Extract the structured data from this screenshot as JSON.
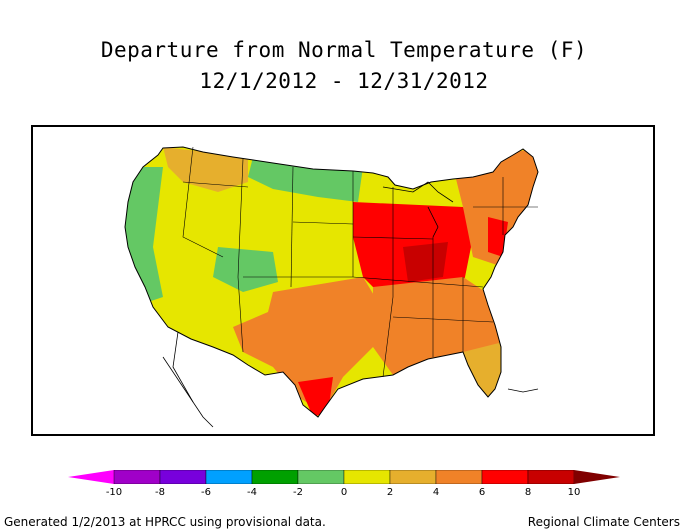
{
  "title": "Departure from Normal Temperature (F)",
  "date_range": "12/1/2012 - 12/31/2012",
  "legend": {
    "ticks": [
      "-10",
      "-8",
      "-6",
      "-4",
      "-2",
      "0",
      "2",
      "4",
      "6",
      "8",
      "10"
    ],
    "colors": [
      "#ff00ff",
      "#a000c8",
      "#7800dc",
      "#00a0ff",
      "#00a000",
      "#64c864",
      "#e6e600",
      "#e6af2d",
      "#f08228",
      "#ff0000",
      "#c80000",
      "#800000"
    ]
  },
  "regions": {
    "northern_plains": {
      "color": "#64c864",
      "departure": "-2 to 0"
    },
    "west_interior": {
      "color": "#e6e600",
      "departure": "0 to 2"
    },
    "pacific_coast": {
      "color": "#64c864",
      "departure": "-2 to 0"
    },
    "southern_plains": {
      "color": "#f08228",
      "departure": "4 to 6"
    },
    "midwest": {
      "color": "#ff0000",
      "departure": "6 to 8"
    },
    "southeast": {
      "color": "#f08228",
      "departure": "4 to 6"
    },
    "northeast": {
      "color": "#f08228",
      "departure": "4 to 6"
    },
    "florida": {
      "color": "#e6af2d",
      "departure": "2 to 4"
    }
  },
  "footer": {
    "left": "Generated 1/2/2013 at HPRCC using provisional data.",
    "right": "Regional Climate Centers"
  }
}
